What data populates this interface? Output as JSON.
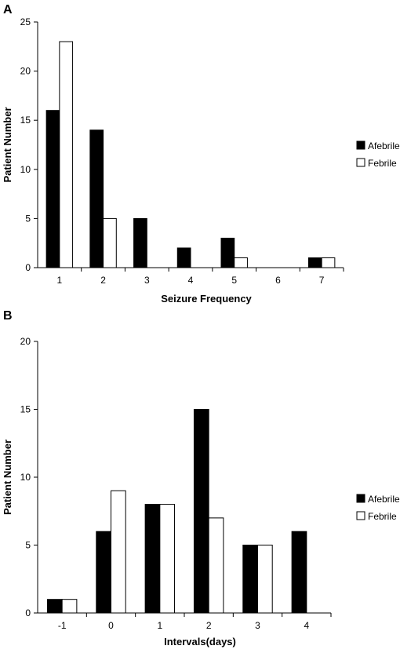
{
  "chart_data": [
    {
      "panel": "A",
      "type": "bar",
      "categories": [
        "1",
        "2",
        "3",
        "4",
        "5",
        "6",
        "7"
      ],
      "series": [
        {
          "name": "Afebrile",
          "values": [
            16,
            14,
            5,
            2,
            3,
            0,
            1
          ],
          "color": "#000000"
        },
        {
          "name": "Febrile",
          "values": [
            23,
            5,
            0,
            0,
            1,
            0,
            1
          ],
          "color": "#ffffff"
        }
      ],
      "xlabel": "Seizure Frequency",
      "ylabel": "Patient Number",
      "ylim": [
        0,
        25
      ],
      "yticks": [
        "0",
        "5",
        "10",
        "15",
        "20",
        "25"
      ],
      "grid": false,
      "legend_position": "right"
    },
    {
      "panel": "B",
      "type": "bar",
      "categories": [
        "-1",
        "0",
        "1",
        "2",
        "3",
        "4"
      ],
      "series": [
        {
          "name": "Afebrile",
          "values": [
            1,
            6,
            8,
            15,
            5,
            6
          ],
          "color": "#000000"
        },
        {
          "name": "Febrile",
          "values": [
            1,
            9,
            8,
            7,
            5,
            0
          ],
          "color": "#ffffff"
        }
      ],
      "xlabel": "Intervals(days)",
      "ylabel": "Patient Number",
      "ylim": [
        0,
        20
      ],
      "yticks": [
        "0",
        "5",
        "10",
        "15",
        "20"
      ],
      "grid": false,
      "legend_position": "right"
    }
  ]
}
